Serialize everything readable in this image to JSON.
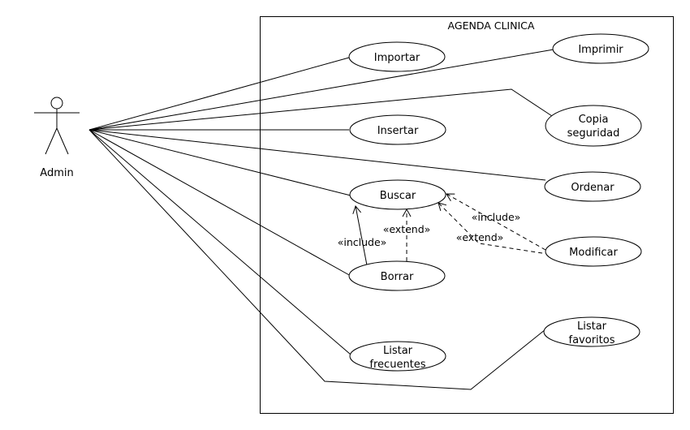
{
  "system": {
    "title": "AGENDA CLINICA"
  },
  "actor": {
    "name": "Admin"
  },
  "use_cases": {
    "importar": [
      "Importar"
    ],
    "imprimir": [
      "Imprimir"
    ],
    "copia": [
      "Copia",
      "seguridad"
    ],
    "insertar": [
      "Insertar"
    ],
    "ordenar": [
      "Ordenar"
    ],
    "buscar": [
      "Buscar"
    ],
    "modificar": [
      "Modificar"
    ],
    "borrar": [
      "Borrar"
    ],
    "listar_favoritos": [
      "Listar",
      "favoritos"
    ],
    "listar_frecuentes": [
      "Listar",
      "frecuentes"
    ]
  },
  "relations": {
    "borrar_include": "«include»",
    "borrar_extend": "«extend»",
    "modificar_include": "«include»",
    "modificar_extend": "«extend»"
  }
}
